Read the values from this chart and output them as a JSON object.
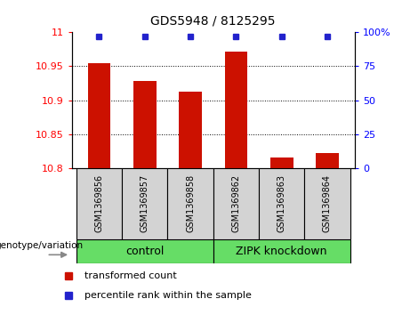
{
  "title": "GDS5948 / 8125295",
  "samples": [
    "GSM1369856",
    "GSM1369857",
    "GSM1369858",
    "GSM1369862",
    "GSM1369863",
    "GSM1369864"
  ],
  "bar_values": [
    10.955,
    10.928,
    10.912,
    10.972,
    10.815,
    10.822
  ],
  "percentile_values": [
    97,
    97,
    97,
    97,
    97,
    97
  ],
  "bar_color": "#cc1100",
  "dot_color": "#2222cc",
  "ylim_left": [
    10.8,
    11.0
  ],
  "ylim_right": [
    -5,
    100
  ],
  "yticks_left": [
    10.8,
    10.85,
    10.9,
    10.95,
    11.0
  ],
  "ytick_labels_left": [
    "10.8",
    "10.85",
    "10.9",
    "10.95",
    "11"
  ],
  "yticks_right": [
    0,
    25,
    50,
    75,
    100
  ],
  "ytick_labels_right": [
    "0",
    "25",
    "50",
    "75",
    "100%"
  ],
  "grid_lines": [
    10.85,
    10.9,
    10.95
  ],
  "legend_label_bar": "transformed count",
  "legend_label_dot": "percentile rank within the sample",
  "genotype_label": "genotype/variation",
  "bg_color": "#ffffff",
  "sample_box_color": "#d3d3d3",
  "group_box_color": "#66dd66"
}
